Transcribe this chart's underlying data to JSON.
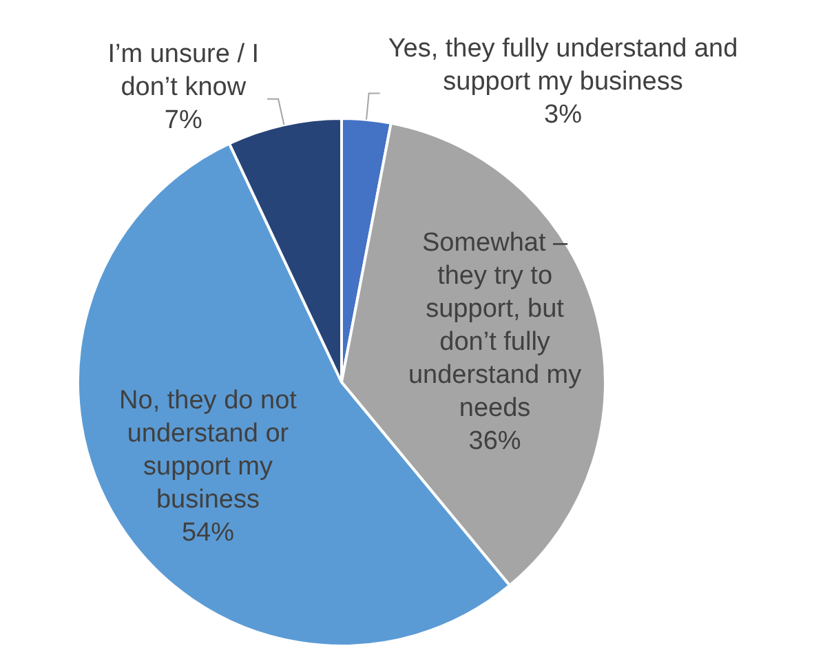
{
  "chart_data": {
    "type": "pie",
    "categories": [
      "Yes, they fully understand and support my business",
      "Somewhat – they try to support, but don’t fully understand my needs",
      "No, they do not understand or support my business",
      "I’m unsure / I don’t know"
    ],
    "values": [
      3,
      36,
      54,
      7
    ],
    "colors": [
      "#4472c4",
      "#a5a5a5",
      "#5b9bd5",
      "#264478"
    ],
    "value_labels": [
      "3%",
      "36%",
      "54%",
      "7%"
    ],
    "legend": false
  }
}
